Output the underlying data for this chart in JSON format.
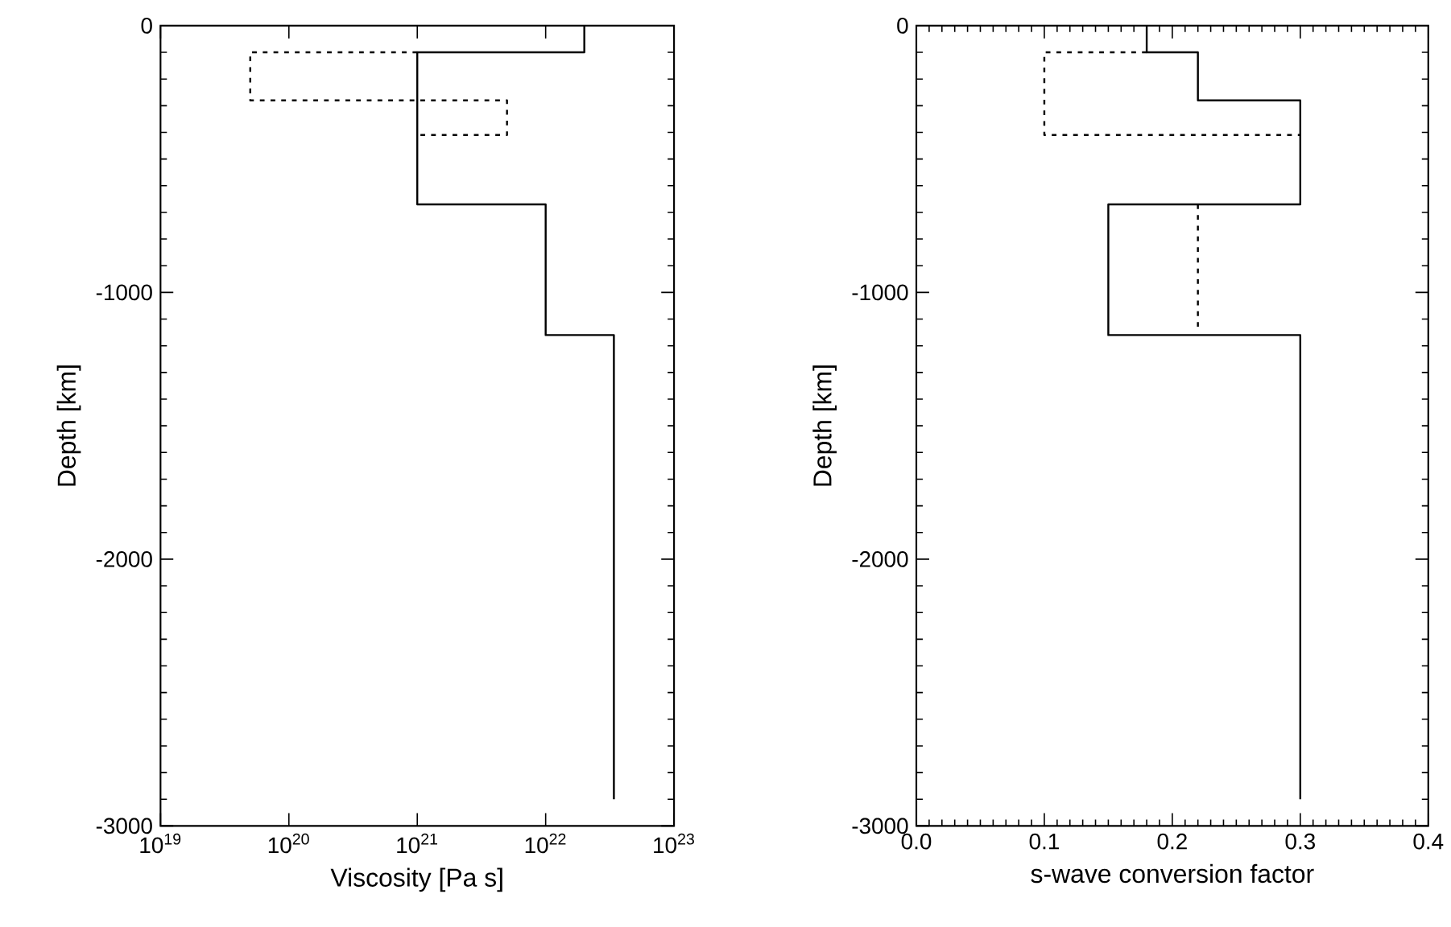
{
  "chart_data": [
    {
      "type": "line",
      "xlabel": "Viscosity [Pa s]",
      "ylabel": "Depth [km]",
      "log": "x",
      "xlim": [
        1e+19,
        1e+23
      ],
      "ylim": [
        -3000,
        0
      ],
      "xticks": [
        {
          "value": 1e+19,
          "label": "10$^{19}$"
        },
        {
          "value": 1e+20,
          "label": "10$^{20}$"
        },
        {
          "value": 1e+21,
          "label": "10$^{21}$"
        },
        {
          "value": 1e+22,
          "label": "10$^{22}$"
        },
        {
          "value": 1e+23,
          "label": "10$^{23}$"
        }
      ],
      "yticks": [
        -3000,
        -2000,
        -1000,
        0
      ],
      "series": [
        {
          "color": "#000000",
          "line_style": "solid",
          "x": [
            2e+22,
            2e+22,
            1e+21,
            1e+21,
            1e+22,
            1e+22,
            3.4e+22,
            3.4e+22
          ],
          "values": [
            0,
            -100,
            -100,
            -670,
            -670,
            -1160,
            -1160,
            -2900
          ]
        },
        {
          "color": "#000000",
          "line_style": "dashed",
          "x": [
            1e+21,
            5e+19,
            5e+19,
            5e+21,
            5e+21,
            1e+21
          ],
          "values": [
            -100,
            -100,
            -280,
            -280,
            -410,
            -410
          ]
        }
      ]
    },
    {
      "type": "line",
      "xlabel": "s-wave conversion factor",
      "ylabel": "Depth [km]",
      "xlim": [
        0,
        0.4
      ],
      "ylim": [
        -3000,
        0
      ],
      "xticks": [
        {
          "value": 0,
          "label": "0.0"
        },
        {
          "value": 0.1,
          "label": "0.1"
        },
        {
          "value": 0.2,
          "label": "0.2"
        },
        {
          "value": 0.3,
          "label": "0.3"
        },
        {
          "value": 0.4,
          "label": "0.4"
        }
      ],
      "yticks": [
        -3000,
        -2000,
        -1000,
        0
      ],
      "series": [
        {
          "color": "#000000",
          "line_style": "solid",
          "x": [
            0.18,
            0.18,
            0.22,
            0.22,
            0.3,
            0.3,
            0.15,
            0.15,
            0.3,
            0.3
          ],
          "values": [
            0,
            -100,
            -100,
            -280,
            -280,
            -670,
            -670,
            -1160,
            -1160,
            -2900
          ]
        },
        {
          "color": "#000000",
          "line_style": "dashed",
          "x": [
            0.18,
            0.1,
            0.1,
            0.3
          ],
          "values": [
            -100,
            -100,
            -410,
            -410
          ]
        },
        {
          "color": "#000000",
          "line_style": "dashed",
          "x": [
            0.22,
            0.22
          ],
          "values": [
            -670,
            -1140
          ]
        }
      ]
    }
  ]
}
